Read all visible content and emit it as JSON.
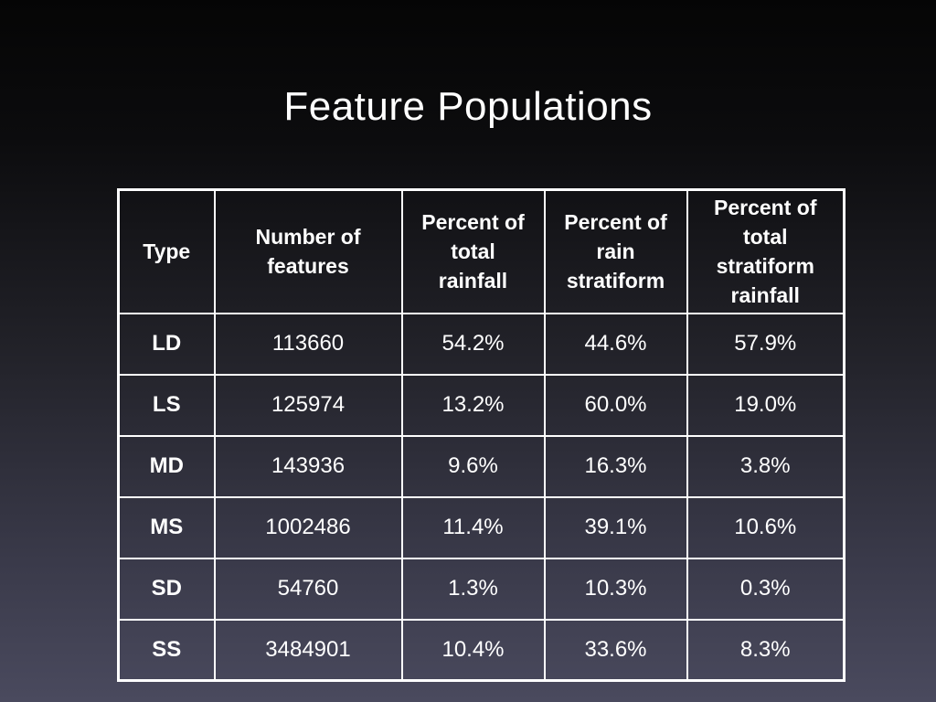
{
  "slide": {
    "title": "Feature Populations"
  },
  "table": {
    "headers": [
      "Type",
      "Number of features",
      "Percent of total rainfall",
      "Percent of rain stratiform",
      "Percent of total stratiform rainfall"
    ],
    "header_lines": [
      [
        "Type"
      ],
      [
        "Number of",
        "features"
      ],
      [
        "Percent of",
        "total",
        "rainfall"
      ],
      [
        "Percent of",
        "rain",
        "stratiform"
      ],
      [
        "Percent of",
        "total",
        "stratiform",
        "rainfall"
      ]
    ],
    "rows": [
      {
        "type": "LD",
        "number_of_features": "113660",
        "pct_total_rainfall": "54.2%",
        "pct_rain_stratiform": "44.6%",
        "pct_total_stratiform_rainfall": "57.9%"
      },
      {
        "type": "LS",
        "number_of_features": "125974",
        "pct_total_rainfall": "13.2%",
        "pct_rain_stratiform": "60.0%",
        "pct_total_stratiform_rainfall": "19.0%"
      },
      {
        "type": "MD",
        "number_of_features": "143936",
        "pct_total_rainfall": "9.6%",
        "pct_rain_stratiform": "16.3%",
        "pct_total_stratiform_rainfall": "3.8%"
      },
      {
        "type": "MS",
        "number_of_features": "1002486",
        "pct_total_rainfall": "11.4%",
        "pct_rain_stratiform": "39.1%",
        "pct_total_stratiform_rainfall": "10.6%"
      },
      {
        "type": "SD",
        "number_of_features": "54760",
        "pct_total_rainfall": "1.3%",
        "pct_rain_stratiform": "10.3%",
        "pct_total_stratiform_rainfall": "0.3%"
      },
      {
        "type": "SS",
        "number_of_features": "3484901",
        "pct_total_rainfall": "10.4%",
        "pct_rain_stratiform": "33.6%",
        "pct_total_stratiform_rainfall": "8.3%"
      }
    ]
  },
  "colors": {
    "text": "#ffffff",
    "grid": "#ffffff",
    "background_top": "#050505",
    "background_bottom": "#4a4a5e"
  }
}
